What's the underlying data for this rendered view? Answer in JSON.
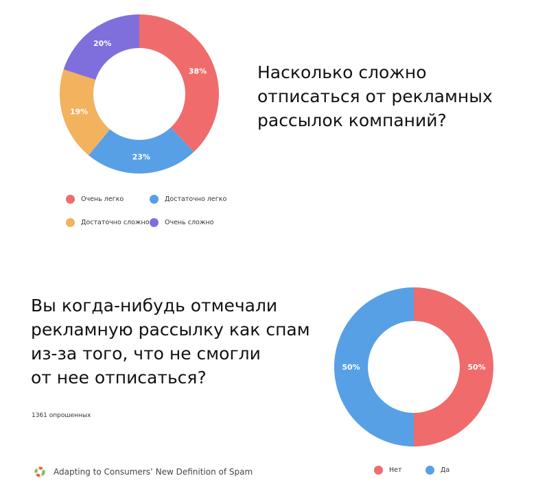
{
  "chart_data": [
    {
      "type": "pie",
      "donut": true,
      "title": "Насколько сложно\nотписаться от рекламных\nрассылок компаний?",
      "categories": [
        "Очень легко",
        "Достаточно легко",
        "Достаточно сложно",
        "Очень сложно"
      ],
      "values": [
        38,
        23,
        19,
        20
      ],
      "labels": [
        "38%",
        "23%",
        "19%",
        "20%"
      ],
      "colors": [
        "#f06b6b",
        "#57a0e6",
        "#f2b25e",
        "#7f6fdc"
      ],
      "legend_placement": "bottom"
    },
    {
      "type": "pie",
      "donut": true,
      "title": "Вы когда-нибудь отмечали\nрекламную рассылку как спам\nиз-за того, что не смогли\nот нее отписаться?",
      "categories": [
        "Нет",
        "Да"
      ],
      "values": [
        50,
        50
      ],
      "labels": [
        "50%",
        "50%"
      ],
      "colors": [
        "#f06b6b",
        "#57a0e6"
      ],
      "legend_placement": "bottom"
    }
  ],
  "respondents": "1361 опрошенных",
  "source": "Adapting to Consumers’ New Definition of Spam"
}
